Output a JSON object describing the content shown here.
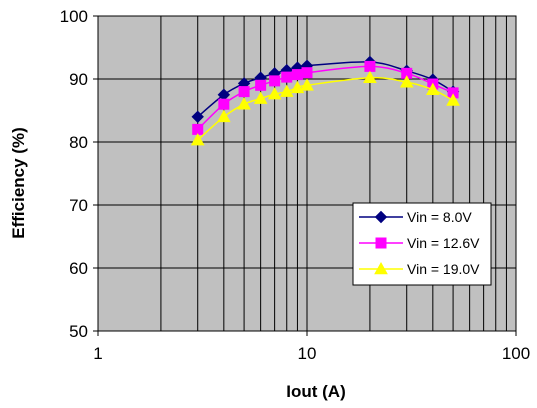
{
  "chart_data": {
    "type": "line",
    "title": "",
    "xlabel": "Iout (A)",
    "ylabel": "Efficiency (%)",
    "xscale": "log",
    "xlim": [
      1,
      100
    ],
    "ylim": [
      50,
      100
    ],
    "x_tick_labels": [
      "1",
      "10",
      "100"
    ],
    "y_tick_labels": [
      "50",
      "60",
      "70",
      "80",
      "90",
      "100"
    ],
    "grid": true,
    "plot_background": "#c0c0c0",
    "legend_position": "bottom-right",
    "x": [
      3,
      4,
      5,
      6,
      7,
      8,
      9,
      10,
      20,
      30,
      40,
      50
    ],
    "series": [
      {
        "name": "Vin = 8.0V",
        "color": "#000080",
        "marker": "diamond",
        "values": [
          84.0,
          87.5,
          89.3,
          90.2,
          90.9,
          91.4,
          91.8,
          92.1,
          92.7,
          91.3,
          89.9,
          88.0
        ]
      },
      {
        "name": "Vin = 12.6V",
        "color": "#ff00ff",
        "marker": "square",
        "values": [
          82.0,
          86.0,
          88.0,
          89.0,
          89.7,
          90.3,
          90.7,
          91.0,
          92.0,
          90.9,
          89.2,
          87.8
        ]
      },
      {
        "name": "Vin = 19.0V",
        "color": "#ffff00",
        "marker": "triangle",
        "values": [
          80.3,
          84.0,
          86.0,
          86.9,
          87.6,
          88.0,
          88.6,
          89.0,
          90.2,
          89.5,
          88.3,
          86.6
        ]
      }
    ]
  }
}
